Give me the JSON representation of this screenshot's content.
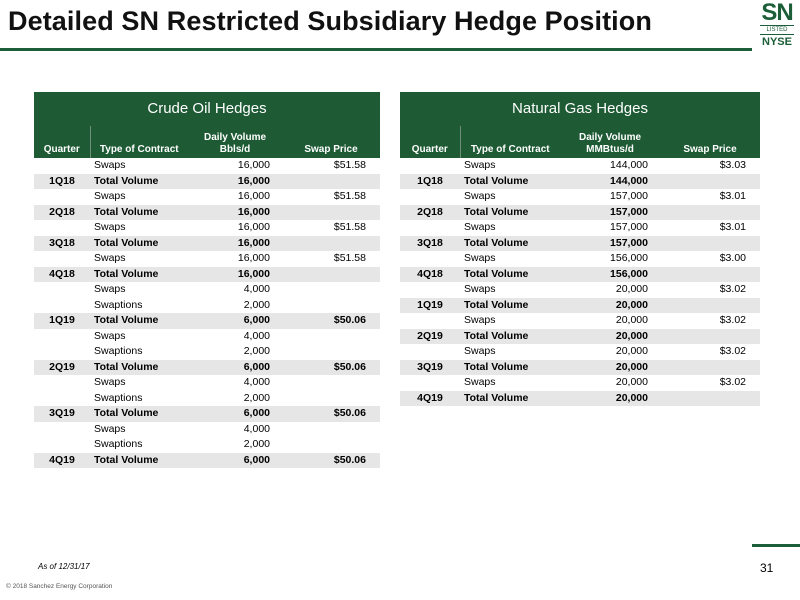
{
  "title": "Detailed SN Restricted Subsidiary Hedge Position",
  "logo": {
    "ticker": "SN",
    "listed": "LISTED",
    "exchange": "NYSE"
  },
  "crude": {
    "title": "Crude Oil Hedges",
    "headers": {
      "quarter": "Quarter",
      "type": "Type of Contract",
      "volume": "Daily Volume\nBbls/d",
      "price": "Swap Price"
    },
    "rows": [
      {
        "quarter": "",
        "type": "Swaps",
        "volume": "16,000",
        "price": "$51.58",
        "total": false
      },
      {
        "quarter": "1Q18",
        "type": "Total Volume",
        "volume": "16,000",
        "price": "",
        "total": true
      },
      {
        "quarter": "",
        "type": "Swaps",
        "volume": "16,000",
        "price": "$51.58",
        "total": false
      },
      {
        "quarter": "2Q18",
        "type": "Total Volume",
        "volume": "16,000",
        "price": "",
        "total": true
      },
      {
        "quarter": "",
        "type": "Swaps",
        "volume": "16,000",
        "price": "$51.58",
        "total": false
      },
      {
        "quarter": "3Q18",
        "type": "Total Volume",
        "volume": "16,000",
        "price": "",
        "total": true
      },
      {
        "quarter": "",
        "type": "Swaps",
        "volume": "16,000",
        "price": "$51.58",
        "total": false
      },
      {
        "quarter": "4Q18",
        "type": "Total Volume",
        "volume": "16,000",
        "price": "",
        "total": true
      },
      {
        "quarter": "",
        "type": "Swaps",
        "volume": "4,000",
        "price": "",
        "total": false
      },
      {
        "quarter": "",
        "type": "Swaptions",
        "volume": "2,000",
        "price": "",
        "total": false
      },
      {
        "quarter": "1Q19",
        "type": "Total Volume",
        "volume": "6,000",
        "price": "$50.06",
        "total": true
      },
      {
        "quarter": "",
        "type": "Swaps",
        "volume": "4,000",
        "price": "",
        "total": false
      },
      {
        "quarter": "",
        "type": "Swaptions",
        "volume": "2,000",
        "price": "",
        "total": false
      },
      {
        "quarter": "2Q19",
        "type": "Total Volume",
        "volume": "6,000",
        "price": "$50.06",
        "total": true
      },
      {
        "quarter": "",
        "type": "Swaps",
        "volume": "4,000",
        "price": "",
        "total": false
      },
      {
        "quarter": "",
        "type": "Swaptions",
        "volume": "2,000",
        "price": "",
        "total": false
      },
      {
        "quarter": "3Q19",
        "type": "Total Volume",
        "volume": "6,000",
        "price": "$50.06",
        "total": true
      },
      {
        "quarter": "",
        "type": "Swaps",
        "volume": "4,000",
        "price": "",
        "total": false
      },
      {
        "quarter": "",
        "type": "Swaptions",
        "volume": "2,000",
        "price": "",
        "total": false
      },
      {
        "quarter": "4Q19",
        "type": "Total Volume",
        "volume": "6,000",
        "price": "$50.06",
        "total": true
      }
    ]
  },
  "gas": {
    "title": "Natural Gas Hedges",
    "headers": {
      "quarter": "Quarter",
      "type": "Type of Contract",
      "volume": "Daily Volume\nMMBtus/d",
      "price": "Swap Price"
    },
    "rows": [
      {
        "quarter": "",
        "type": "Swaps",
        "volume": "144,000",
        "price": "$3.03",
        "total": false
      },
      {
        "quarter": "1Q18",
        "type": "Total Volume",
        "volume": "144,000",
        "price": "",
        "total": true
      },
      {
        "quarter": "",
        "type": "Swaps",
        "volume": "157,000",
        "price": "$3.01",
        "total": false
      },
      {
        "quarter": "2Q18",
        "type": "Total Volume",
        "volume": "157,000",
        "price": "",
        "total": true
      },
      {
        "quarter": "",
        "type": "Swaps",
        "volume": "157,000",
        "price": "$3.01",
        "total": false
      },
      {
        "quarter": "3Q18",
        "type": "Total Volume",
        "volume": "157,000",
        "price": "",
        "total": true
      },
      {
        "quarter": "",
        "type": "Swaps",
        "volume": "156,000",
        "price": "$3.00",
        "total": false
      },
      {
        "quarter": "4Q18",
        "type": "Total Volume",
        "volume": "156,000",
        "price": "",
        "total": true
      },
      {
        "quarter": "",
        "type": "Swaps",
        "volume": "20,000",
        "price": "$3.02",
        "total": false
      },
      {
        "quarter": "1Q19",
        "type": "Total Volume",
        "volume": "20,000",
        "price": "",
        "total": true
      },
      {
        "quarter": "",
        "type": "Swaps",
        "volume": "20,000",
        "price": "$3.02",
        "total": false
      },
      {
        "quarter": "2Q19",
        "type": "Total Volume",
        "volume": "20,000",
        "price": "",
        "total": true
      },
      {
        "quarter": "",
        "type": "Swaps",
        "volume": "20,000",
        "price": "$3.02",
        "total": false
      },
      {
        "quarter": "3Q19",
        "type": "Total Volume",
        "volume": "20,000",
        "price": "",
        "total": true
      },
      {
        "quarter": "",
        "type": "Swaps",
        "volume": "20,000",
        "price": "$3.02",
        "total": false
      },
      {
        "quarter": "4Q19",
        "type": "Total Volume",
        "volume": "20,000",
        "price": "",
        "total": true
      }
    ]
  },
  "footer": {
    "as_of": "As of 12/31/17",
    "copyright": "© 2018 Sanchez Energy Corporation",
    "page": "31"
  },
  "colors": {
    "accent": "#1e5b35",
    "total_row": "#e6e6e6"
  }
}
